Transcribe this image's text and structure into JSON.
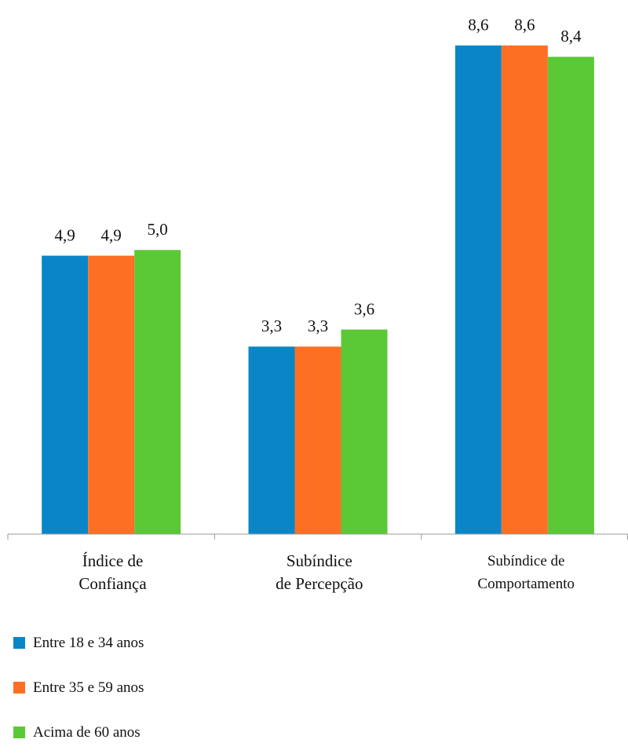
{
  "chart_data": {
    "type": "bar",
    "categories": [
      "Índice de\nConfiança",
      "Subíndice\nde Percepção",
      "Subíndice de\nComportamento"
    ],
    "series": [
      {
        "name": "Entre 18 e 34 anos",
        "color": "#0a86c8",
        "values": [
          4.9,
          3.3,
          8.6
        ],
        "value_labels": [
          "4,9",
          "3,3",
          "8,6"
        ]
      },
      {
        "name": "Entre 35 e 59 anos",
        "color": "#fd7023",
        "values": [
          4.9,
          3.3,
          8.6
        ],
        "value_labels": [
          "4,9",
          "3,3",
          "8,6"
        ]
      },
      {
        "name": "Acima de 60 anos",
        "color": "#5ac935",
        "values": [
          5.0,
          3.6,
          8.4
        ],
        "value_labels": [
          "5,0",
          "3,6",
          "8,4"
        ]
      }
    ],
    "ylim": [
      0,
      9.4
    ]
  }
}
